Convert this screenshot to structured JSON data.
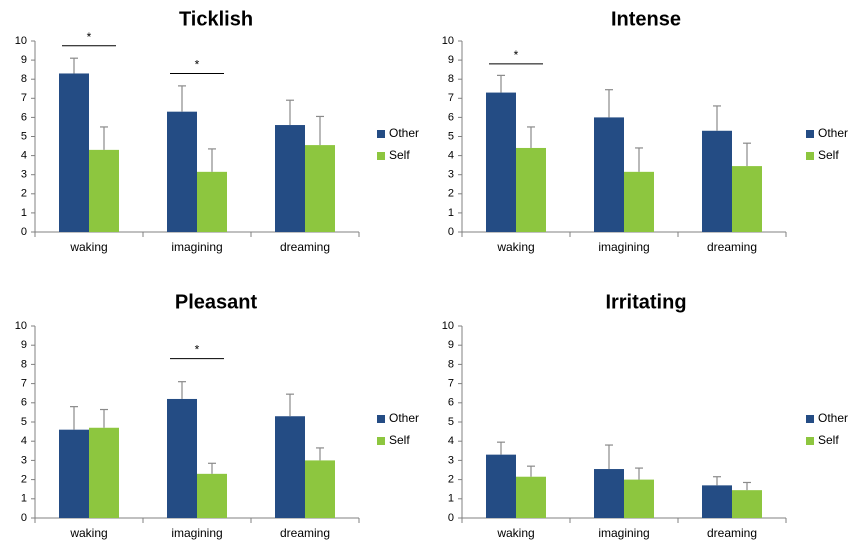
{
  "colors": {
    "other": "#244c84",
    "self": "#8dc63f",
    "axis": "#808080",
    "error": "#8a8a8a",
    "bracket": "#000000"
  },
  "chart_data": [
    {
      "type": "bar",
      "title": "Ticklish",
      "categories": [
        "waking",
        "imagining",
        "dreaming"
      ],
      "ylim": [
        0,
        10
      ],
      "yticks": [
        "0",
        "1",
        "2",
        "3",
        "4",
        "5",
        "6",
        "7",
        "8",
        "9",
        "10"
      ],
      "legend": {
        "position": "right",
        "entries": [
          "Other",
          "Self"
        ]
      },
      "series": [
        {
          "name": "Other",
          "values": [
            8.3,
            6.3,
            5.6
          ],
          "errors": [
            0.8,
            1.35,
            1.3
          ]
        },
        {
          "name": "Self",
          "values": [
            4.3,
            3.15,
            4.55
          ],
          "errors": [
            1.2,
            1.2,
            1.5
          ]
        }
      ],
      "significance": [
        {
          "category": 0,
          "label": "*",
          "level": 9.75
        },
        {
          "category": 1,
          "label": "*",
          "level": 8.3
        }
      ]
    },
    {
      "type": "bar",
      "title": "Intense",
      "categories": [
        "waking",
        "imagining",
        "dreaming"
      ],
      "ylim": [
        0,
        10
      ],
      "yticks": [
        "0",
        "1",
        "2",
        "3",
        "4",
        "5",
        "6",
        "7",
        "8",
        "9",
        "10"
      ],
      "legend": {
        "position": "right",
        "entries": [
          "Other",
          "Self"
        ]
      },
      "series": [
        {
          "name": "Other",
          "values": [
            7.3,
            6.0,
            5.3
          ],
          "errors": [
            0.9,
            1.45,
            1.3
          ]
        },
        {
          "name": "Self",
          "values": [
            4.4,
            3.15,
            3.45
          ],
          "errors": [
            1.1,
            1.25,
            1.2
          ]
        }
      ],
      "significance": [
        {
          "category": 0,
          "label": "*",
          "level": 8.8
        }
      ]
    },
    {
      "type": "bar",
      "title": "Pleasant",
      "categories": [
        "waking",
        "imagining",
        "dreaming"
      ],
      "ylim": [
        0,
        10
      ],
      "yticks": [
        "0",
        "1",
        "2",
        "3",
        "4",
        "5",
        "6",
        "7",
        "8",
        "9",
        "10"
      ],
      "legend": {
        "position": "right",
        "entries": [
          "Other",
          "Self"
        ]
      },
      "series": [
        {
          "name": "Other",
          "values": [
            4.6,
            6.2,
            5.3
          ],
          "errors": [
            1.2,
            0.9,
            1.15
          ]
        },
        {
          "name": "Self",
          "values": [
            4.7,
            2.3,
            3.0
          ],
          "errors": [
            0.95,
            0.55,
            0.65
          ]
        }
      ],
      "significance": [
        {
          "category": 1,
          "label": "*",
          "level": 8.3
        }
      ]
    },
    {
      "type": "bar",
      "title": "Irritating",
      "categories": [
        "waking",
        "imagining",
        "dreaming"
      ],
      "ylim": [
        0,
        10
      ],
      "yticks": [
        "0",
        "1",
        "2",
        "3",
        "4",
        "5",
        "6",
        "7",
        "8",
        "9",
        "10"
      ],
      "legend": {
        "position": "right",
        "entries": [
          "Other",
          "Self"
        ]
      },
      "series": [
        {
          "name": "Other",
          "values": [
            3.3,
            2.55,
            1.7
          ],
          "errors": [
            0.65,
            1.25,
            0.45
          ]
        },
        {
          "name": "Self",
          "values": [
            2.15,
            2.0,
            1.45
          ],
          "errors": [
            0.55,
            0.6,
            0.4
          ]
        }
      ],
      "significance": []
    }
  ]
}
